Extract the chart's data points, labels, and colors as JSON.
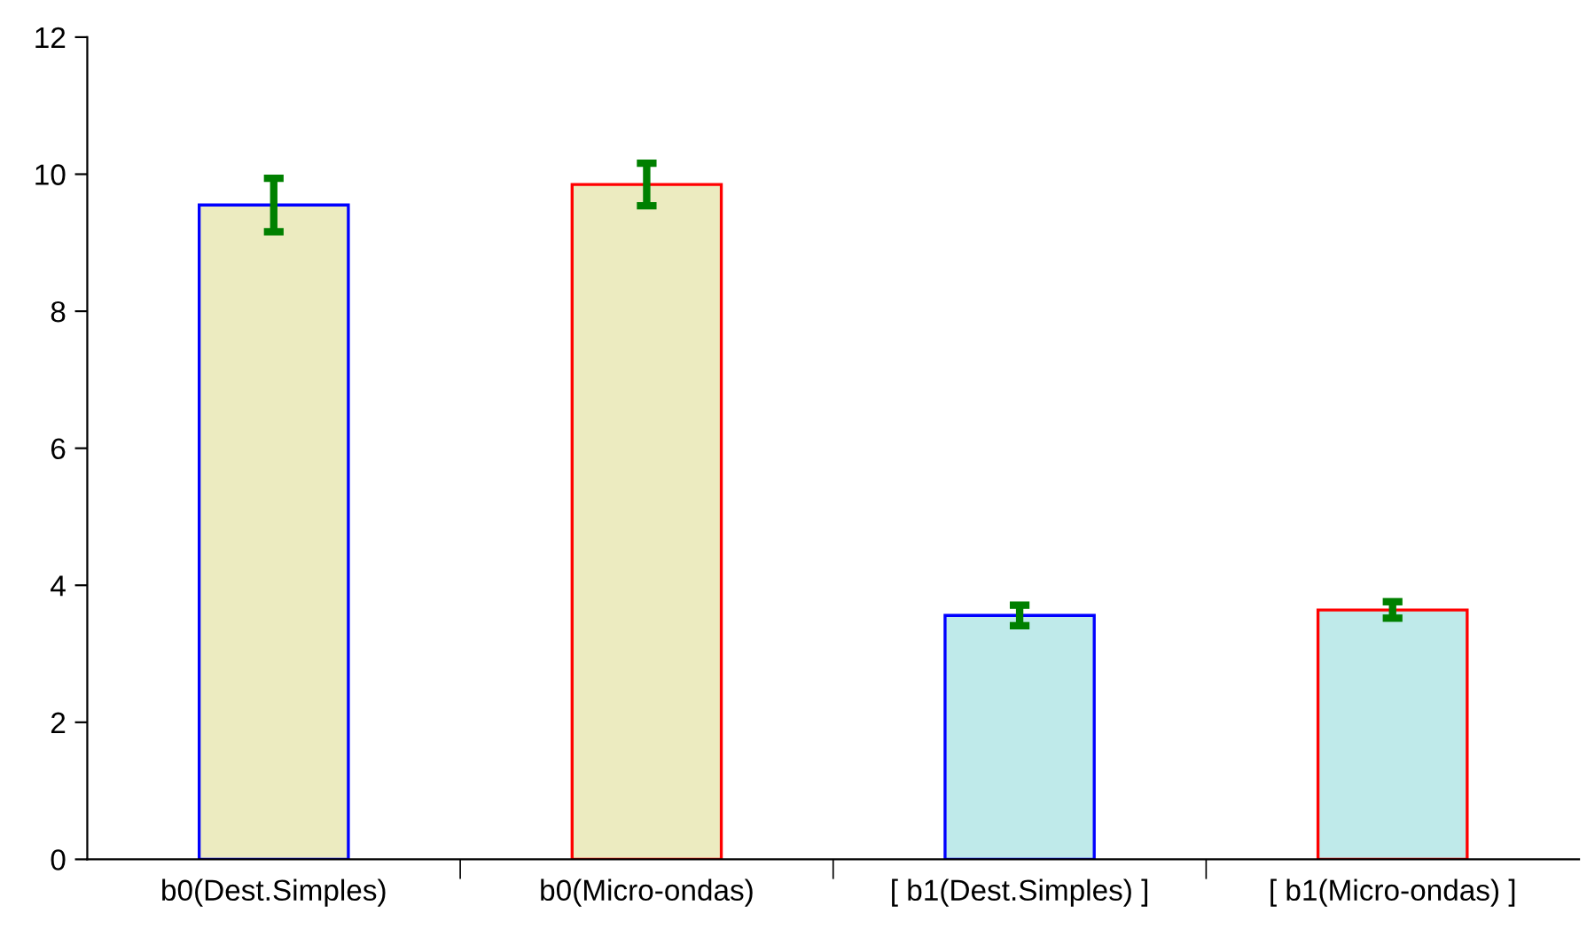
{
  "chart_data": {
    "type": "bar",
    "categories": [
      "b0(Dest.Simples)",
      "b0(Micro-ondas)",
      "[ b1(Dest.Simples) ]",
      "[ b1(Micro-ondas) ]"
    ],
    "values": [
      9.55,
      9.85,
      3.56,
      3.64
    ],
    "errors": [
      0.39,
      0.31,
      0.15,
      0.12
    ],
    "colors": [
      "#ecebc0",
      "#ecebc0",
      "#bfeaea",
      "#bfeaea"
    ],
    "ylim": [
      0,
      12
    ],
    "yticks": [
      0,
      2,
      4,
      6,
      8,
      10,
      12
    ],
    "grid": false,
    "legend": false
  }
}
